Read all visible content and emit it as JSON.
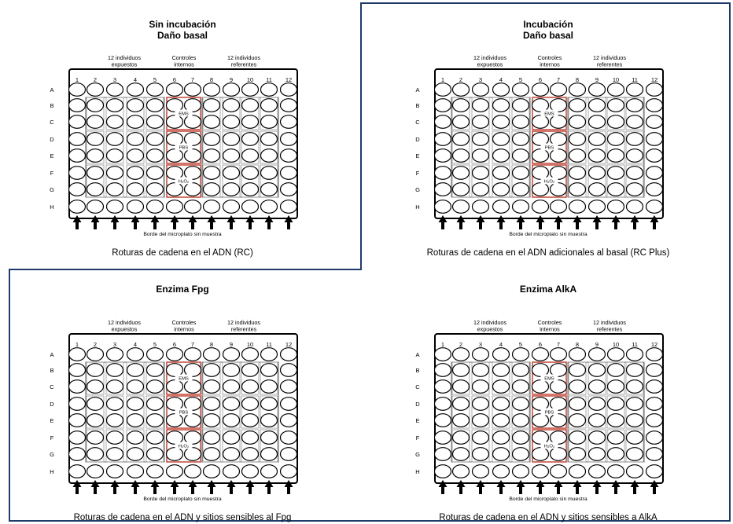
{
  "layout": {
    "rows": [
      "A",
      "B",
      "C",
      "D",
      "E",
      "F",
      "G",
      "H"
    ],
    "columns": [
      "1",
      "2",
      "3",
      "4",
      "5",
      "6",
      "7",
      "8",
      "9",
      "10",
      "11",
      "12"
    ],
    "groups": {
      "exposed": "12 individuos\nexpuestos",
      "controls": "Controles\ninternos",
      "referents": "12 individuos\nreferentes"
    },
    "control_labels": [
      "EMS",
      "PBS",
      "H₂O₂"
    ],
    "edge_note": "Borde del microplato sin muestra"
  },
  "colors": {
    "frame": "#1f3b6b",
    "control_box": "#c0392b",
    "well_stroke": "#000000",
    "group_box": "#666666"
  },
  "panels": [
    {
      "id": "sin-incubacion",
      "title_line1": "Sin incubación",
      "title_line2": "Daño basal",
      "caption": "Roturas de cadena en el ADN (RC)"
    },
    {
      "id": "incubacion",
      "title_line1": "Incubación",
      "title_line2": "Daño basal",
      "caption": "Roturas de cadena en el ADN adicionales al basal (RC Plus)"
    },
    {
      "id": "enzima-fpg",
      "title_line1": "Enzima Fpg",
      "title_line2": "",
      "caption": "Roturas de cadena en el ADN y sitios sensibles al Fpg"
    },
    {
      "id": "enzima-alka",
      "title_line1": "Enzima AlkA",
      "title_line2": "",
      "caption": "Roturas de cadena en el ADN y sitios sensibles a AlkA"
    }
  ]
}
